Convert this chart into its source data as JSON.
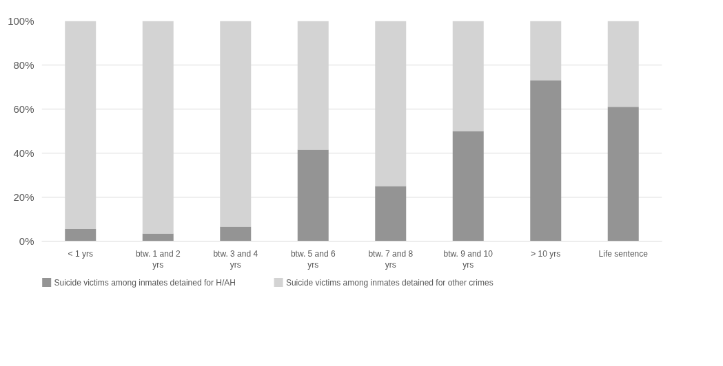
{
  "chart_data": {
    "type": "bar",
    "stacked": true,
    "categories": [
      "< 1 yrs",
      "btw. 1 and 2 yrs",
      "btw. 3 and 4 yrs",
      "btw. 5 and 6 yrs",
      "btw. 7 and 8 yrs",
      "btw. 9 and 10 yrs",
      "> 10 yrs",
      "Life sentence"
    ],
    "series": [
      {
        "name": "Suicide victims among inmates detained for H/AH",
        "color": "#949494",
        "values": [
          5.5,
          3.4,
          6.6,
          41.6,
          25,
          50,
          73,
          61
        ]
      },
      {
        "name": "Suicide victims among inmates detained for other crimes",
        "color": "#d3d3d3",
        "values": [
          94.5,
          96.6,
          93.4,
          58.4,
          75,
          50,
          27,
          39
        ]
      }
    ],
    "ylim": [
      0,
      100
    ],
    "yticks": [
      {
        "value": 0,
        "label": "0%"
      },
      {
        "value": 20,
        "label": "20%"
      },
      {
        "value": 40,
        "label": "40%"
      },
      {
        "value": 60,
        "label": "60%"
      },
      {
        "value": 80,
        "label": "80%"
      },
      {
        "value": 100,
        "label": "100%"
      }
    ],
    "grid": "y",
    "legend": "bottom"
  }
}
